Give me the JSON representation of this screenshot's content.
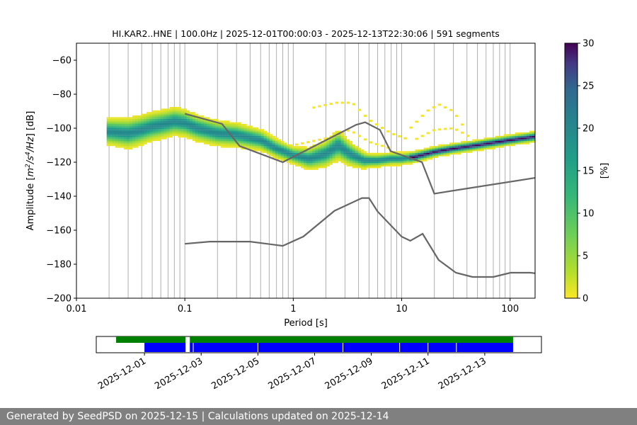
{
  "chart_data": [
    {
      "type": "heatmap",
      "title": "HI.KAR2..HNE | 100.0Hz | 2025-12-01T00:00:03 - 2025-12-13T22:30:06 | 591 segments",
      "xlabel": "Period [s]",
      "ylabel_parts": [
        "Amplitude [",
        "m",
        "2",
        "/",
        "s",
        "4",
        "/",
        "Hz",
        "] [dB]"
      ],
      "x_scale": "log",
      "xlim": [
        0.01,
        170
      ],
      "ylim": [
        -200,
        -50
      ],
      "x_tick_values": [
        0.01,
        0.1,
        1,
        10,
        100
      ],
      "x_tick_labels": [
        "0.01",
        "0.1",
        "1",
        "10",
        "100"
      ],
      "y_tick_values": [
        -200,
        -180,
        -160,
        -140,
        -120,
        -100,
        -80,
        -60
      ],
      "y_tick_labels": [
        "−200",
        "−180",
        "−160",
        "−140",
        "−120",
        "−100",
        "−80",
        "−60"
      ],
      "grid_periods": [
        0.02,
        0.03,
        0.04,
        0.05,
        0.06,
        0.07,
        0.08,
        0.09,
        0.1,
        0.2,
        0.3,
        0.4,
        0.5,
        0.6,
        0.7,
        0.8,
        0.9,
        1,
        2,
        3,
        4,
        5,
        6,
        7,
        8,
        9,
        10,
        20,
        30,
        40,
        50,
        60,
        70,
        80,
        90,
        100
      ],
      "colorbar": {
        "label": "[%]",
        "range": [
          0,
          30
        ],
        "tick_values": [
          0,
          5,
          10,
          15,
          20,
          25,
          30
        ],
        "tick_labels": [
          "0",
          "5",
          "10",
          "15",
          "20",
          "25",
          "30"
        ],
        "colormap": "viridis_r"
      },
      "pdf_mode": [
        [
          0.02,
          -102
        ],
        [
          0.03,
          -103
        ],
        [
          0.04,
          -101
        ],
        [
          0.05,
          -99
        ],
        [
          0.06,
          -98
        ],
        [
          0.07,
          -97
        ],
        [
          0.08,
          -96
        ],
        [
          0.1,
          -97
        ],
        [
          0.13,
          -100
        ],
        [
          0.2,
          -103
        ],
        [
          0.3,
          -104
        ],
        [
          0.5,
          -107
        ],
        [
          0.7,
          -112
        ],
        [
          1,
          -116
        ],
        [
          1.4,
          -118
        ],
        [
          2,
          -115
        ],
        [
          2.6,
          -110
        ],
        [
          3.3,
          -115
        ],
        [
          4.5,
          -119
        ],
        [
          6,
          -119
        ],
        [
          8,
          -118
        ],
        [
          10,
          -118
        ],
        [
          13,
          -117
        ],
        [
          20,
          -114
        ],
        [
          30,
          -112
        ],
        [
          50,
          -110
        ],
        [
          100,
          -107
        ],
        [
          170,
          -105
        ]
      ],
      "pdf_spread_db": [
        [
          0.02,
          8
        ],
        [
          0.03,
          9
        ],
        [
          0.1,
          8
        ],
        [
          0.3,
          7
        ],
        [
          1,
          5
        ],
        [
          2.6,
          9
        ],
        [
          5,
          4
        ],
        [
          20,
          3
        ],
        [
          170,
          3
        ]
      ],
      "pdf_secondary_bands": [
        {
          "name": "upper-microseism-lobe",
          "points": [
            [
              1.5,
              -88
            ],
            [
              2.5,
              -85
            ],
            [
              3.5,
              -85
            ],
            [
              5,
              -95
            ],
            [
              8,
              -103
            ],
            [
              12,
              -107
            ]
          ]
        },
        {
          "name": "long-period-lobe",
          "points": [
            [
              12,
              -100
            ],
            [
              17,
              -90
            ],
            [
              22,
              -86
            ],
            [
              30,
              -90
            ],
            [
              40,
              -102
            ]
          ]
        },
        {
          "name": "long-period-lobe-2",
          "points": [
            [
              13,
              -107
            ],
            [
              20,
              -101
            ],
            [
              30,
              -100
            ],
            [
              40,
              -104
            ],
            [
              50,
              -109
            ]
          ]
        },
        {
          "name": "lower-lobe",
          "points": [
            [
              1,
              -110
            ],
            [
              2,
              -106
            ],
            [
              3.3,
              -101
            ],
            [
              5,
              -108
            ],
            [
              8,
              -112
            ]
          ]
        }
      ],
      "noise_models": [
        {
          "name": "NHNM",
          "points": [
            [
              0.1,
              -91.5
            ],
            [
              0.22,
              -97.4
            ],
            [
              0.32,
              -110.5
            ],
            [
              0.8,
              -120
            ],
            [
              3.8,
              -98
            ],
            [
              4.6,
              -96.5
            ],
            [
              6.3,
              -101
            ],
            [
              7.9,
              -113.5
            ],
            [
              15.4,
              -120
            ],
            [
              20,
              -138.5
            ],
            [
              354.8,
              -126
            ]
          ]
        },
        {
          "name": "NLNM",
          "points": [
            [
              0.1,
              -168
            ],
            [
              0.17,
              -166.7
            ],
            [
              0.4,
              -166.7
            ],
            [
              0.8,
              -169.2
            ],
            [
              1.24,
              -163.7
            ],
            [
              2.4,
              -148.6
            ],
            [
              4.3,
              -141.1
            ],
            [
              5.0,
              -141.1
            ],
            [
              6.0,
              -149
            ],
            [
              10.0,
              -163.8
            ],
            [
              12.0,
              -166.2
            ],
            [
              15.6,
              -162.1
            ],
            [
              21.9,
              -177.5
            ],
            [
              31.6,
              -185
            ],
            [
              45.0,
              -187.5
            ],
            [
              70.0,
              -187.5
            ],
            [
              101.0,
              -185
            ],
            [
              154.0,
              -185
            ],
            [
              328.0,
              -187.5
            ]
          ]
        }
      ]
    },
    {
      "type": "timeline",
      "x_tick_labels": [
        "2025-12-01",
        "2025-12-03",
        "2025-12-05",
        "2025-12-07",
        "2025-12-09",
        "2025-12-11",
        "2025-12-13"
      ],
      "x_tick_days": [
        1,
        3,
        5,
        7,
        9,
        11,
        13
      ],
      "xlim_days": [
        -0.7,
        15.0
      ],
      "data_availability": {
        "color": "#008000",
        "segments": [
          [
            0.0,
            2.45
          ],
          [
            2.6,
            14.0
          ]
        ]
      },
      "psd_segments": {
        "color": "#0000ff",
        "segments": [
          [
            1.0,
            2.45
          ],
          [
            2.6,
            14.0
          ]
        ],
        "gap_days": [
          2.72,
          5.0,
          8.0,
          10.0,
          11.0,
          12.0
        ]
      }
    }
  ],
  "footer": {
    "text": "Generated by SeedPSD on 2025-12-15 | Calculations updated on 2025-12-14"
  }
}
